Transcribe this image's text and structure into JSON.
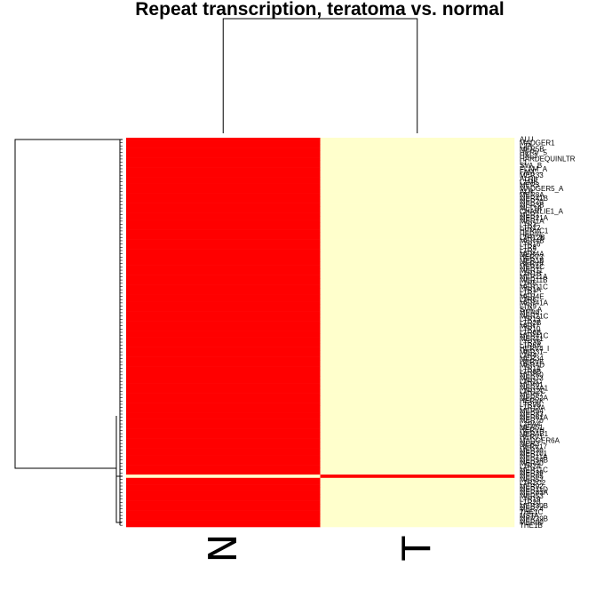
{
  "chart_data": {
    "type": "heatmap",
    "title": "Repeat transcription, teratoma vs. normal",
    "columns": [
      "N",
      "T"
    ],
    "rows": [
      "ALU",
      "MADGER1",
      "L2A",
      "MER5B",
      "HERV_5",
      "HAL1",
      "HARDEQUINLTR",
      "L1",
      "SVA_B",
      "FLAM_A",
      "FAM",
      "MER33",
      "ALRb",
      "L1ME",
      "MER3",
      "MADGER5_A",
      "ALR",
      "MER8A",
      "MER41B",
      "MER20",
      "MER3B",
      "MLT1A",
      "CHARLIE1_A",
      "MER1",
      "MER21A",
      "MER1A",
      "LTR3",
      "LTR12",
      "HERVC1",
      "HERVL",
      "LTR12B",
      "MER4B",
      "LTR16",
      "LTR8",
      "LTR2",
      "MER4A",
      "HERV3",
      "MER1B",
      "HERV9",
      "MER4C",
      "MER11",
      "LTR1B",
      "MER11A",
      "MER11B",
      "LTR5",
      "MER11C",
      "LTR1A",
      "LTR7",
      "MER4E",
      "LTR6",
      "MER41A",
      "LTR9",
      "SVA_A",
      "MER9",
      "MER21C",
      "LTR13",
      "LTR2B",
      "MER7",
      "LTR10",
      "LTR6B",
      "MER41C",
      "MER41",
      "LTR3B",
      "LTR5A",
      "HERV4_I",
      "MER31",
      "LTR4",
      "MER34",
      "HERVE",
      "MER4D",
      "LTR14",
      "LTR8B",
      "MER50",
      "MER73",
      "LTR2C",
      "MER61",
      "MER4A1",
      "LTR12C",
      "MER57",
      "MER52A",
      "HERVK",
      "LTR9B",
      "LTR13A",
      "MER54",
      "MER83",
      "MER61A",
      "MER70",
      "L1PA4",
      "MER51",
      "HERVH",
      "MER4B1",
      "HERV1",
      "MADGER6A",
      "MER2",
      "HERV17",
      "MER30",
      "MER101",
      "MER11A",
      "MER54B",
      "MER40",
      "LTR24",
      "MER11C",
      "MER39",
      "MER65",
      "MER52",
      "LTR2C2",
      "MER92",
      "MER11D",
      "MER83A",
      "MER53",
      "LTR19",
      "LTR20",
      "MER30B",
      "MER74",
      "THE1C",
      "MSTA",
      "MER39B",
      "MER90",
      "THE1B"
    ],
    "values": [
      [
        1,
        0
      ],
      [
        1,
        0
      ],
      [
        1,
        0
      ],
      [
        1,
        0
      ],
      [
        1,
        0
      ],
      [
        1,
        0
      ],
      [
        1,
        0
      ],
      [
        1,
        0
      ],
      [
        1,
        0
      ],
      [
        1,
        0
      ],
      [
        1,
        0
      ],
      [
        1,
        0
      ],
      [
        1,
        0
      ],
      [
        1,
        0
      ],
      [
        1,
        0
      ],
      [
        1,
        0
      ],
      [
        1,
        0
      ],
      [
        1,
        0
      ],
      [
        1,
        0
      ],
      [
        1,
        0
      ],
      [
        1,
        0
      ],
      [
        1,
        0
      ],
      [
        1,
        0
      ],
      [
        1,
        0
      ],
      [
        1,
        0
      ],
      [
        1,
        0
      ],
      [
        1,
        0
      ],
      [
        1,
        0
      ],
      [
        1,
        0
      ],
      [
        1,
        0
      ],
      [
        1,
        0
      ],
      [
        1,
        0
      ],
      [
        1,
        0
      ],
      [
        1,
        0
      ],
      [
        1,
        0
      ],
      [
        1,
        0
      ],
      [
        1,
        0
      ],
      [
        1,
        0
      ],
      [
        1,
        0
      ],
      [
        1,
        0
      ],
      [
        1,
        0
      ],
      [
        1,
        0
      ],
      [
        1,
        0
      ],
      [
        1,
        0
      ],
      [
        1,
        0
      ],
      [
        1,
        0
      ],
      [
        1,
        0
      ],
      [
        1,
        0
      ],
      [
        1,
        0
      ],
      [
        1,
        0
      ],
      [
        1,
        0
      ],
      [
        1,
        0
      ],
      [
        1,
        0
      ],
      [
        1,
        0
      ],
      [
        1,
        0
      ],
      [
        1,
        0
      ],
      [
        1,
        0
      ],
      [
        1,
        0
      ],
      [
        1,
        0
      ],
      [
        1,
        0
      ],
      [
        1,
        0
      ],
      [
        1,
        0
      ],
      [
        1,
        0
      ],
      [
        1,
        0
      ],
      [
        1,
        0
      ],
      [
        1,
        0
      ],
      [
        1,
        0
      ],
      [
        1,
        0
      ],
      [
        1,
        0
      ],
      [
        1,
        0
      ],
      [
        1,
        0
      ],
      [
        1,
        0
      ],
      [
        1,
        0
      ],
      [
        1,
        0
      ],
      [
        1,
        0
      ],
      [
        1,
        0
      ],
      [
        1,
        0
      ],
      [
        1,
        0
      ],
      [
        1,
        0
      ],
      [
        1,
        0
      ],
      [
        1,
        0
      ],
      [
        1,
        0
      ],
      [
        1,
        0
      ],
      [
        1,
        0
      ],
      [
        1,
        0
      ],
      [
        1,
        0
      ],
      [
        1,
        0
      ],
      [
        1,
        0
      ],
      [
        1,
        0
      ],
      [
        1,
        0
      ],
      [
        1,
        0
      ],
      [
        1,
        0
      ],
      [
        1,
        0
      ],
      [
        1,
        0
      ],
      [
        1,
        0
      ],
      [
        1,
        0
      ],
      [
        1,
        0
      ],
      [
        1,
        0
      ],
      [
        1,
        0
      ],
      [
        1,
        0
      ],
      [
        1,
        0
      ],
      [
        1,
        0
      ],
      [
        1,
        0
      ],
      [
        0,
        1
      ],
      [
        1,
        0
      ],
      [
        1,
        0
      ],
      [
        1,
        0
      ],
      [
        1,
        0
      ],
      [
        1,
        0
      ],
      [
        1,
        0
      ],
      [
        1,
        0
      ],
      [
        1,
        0
      ],
      [
        1,
        0
      ],
      [
        1,
        0
      ],
      [
        1,
        0
      ],
      [
        1,
        0
      ],
      [
        1,
        0
      ],
      [
        1,
        0
      ],
      [
        1,
        0
      ]
    ],
    "colors": {
      "high": "#ff0000",
      "low": "#ffffcc"
    },
    "row_dendrogram": "left",
    "column_dendrogram": "top",
    "legend": "none"
  }
}
